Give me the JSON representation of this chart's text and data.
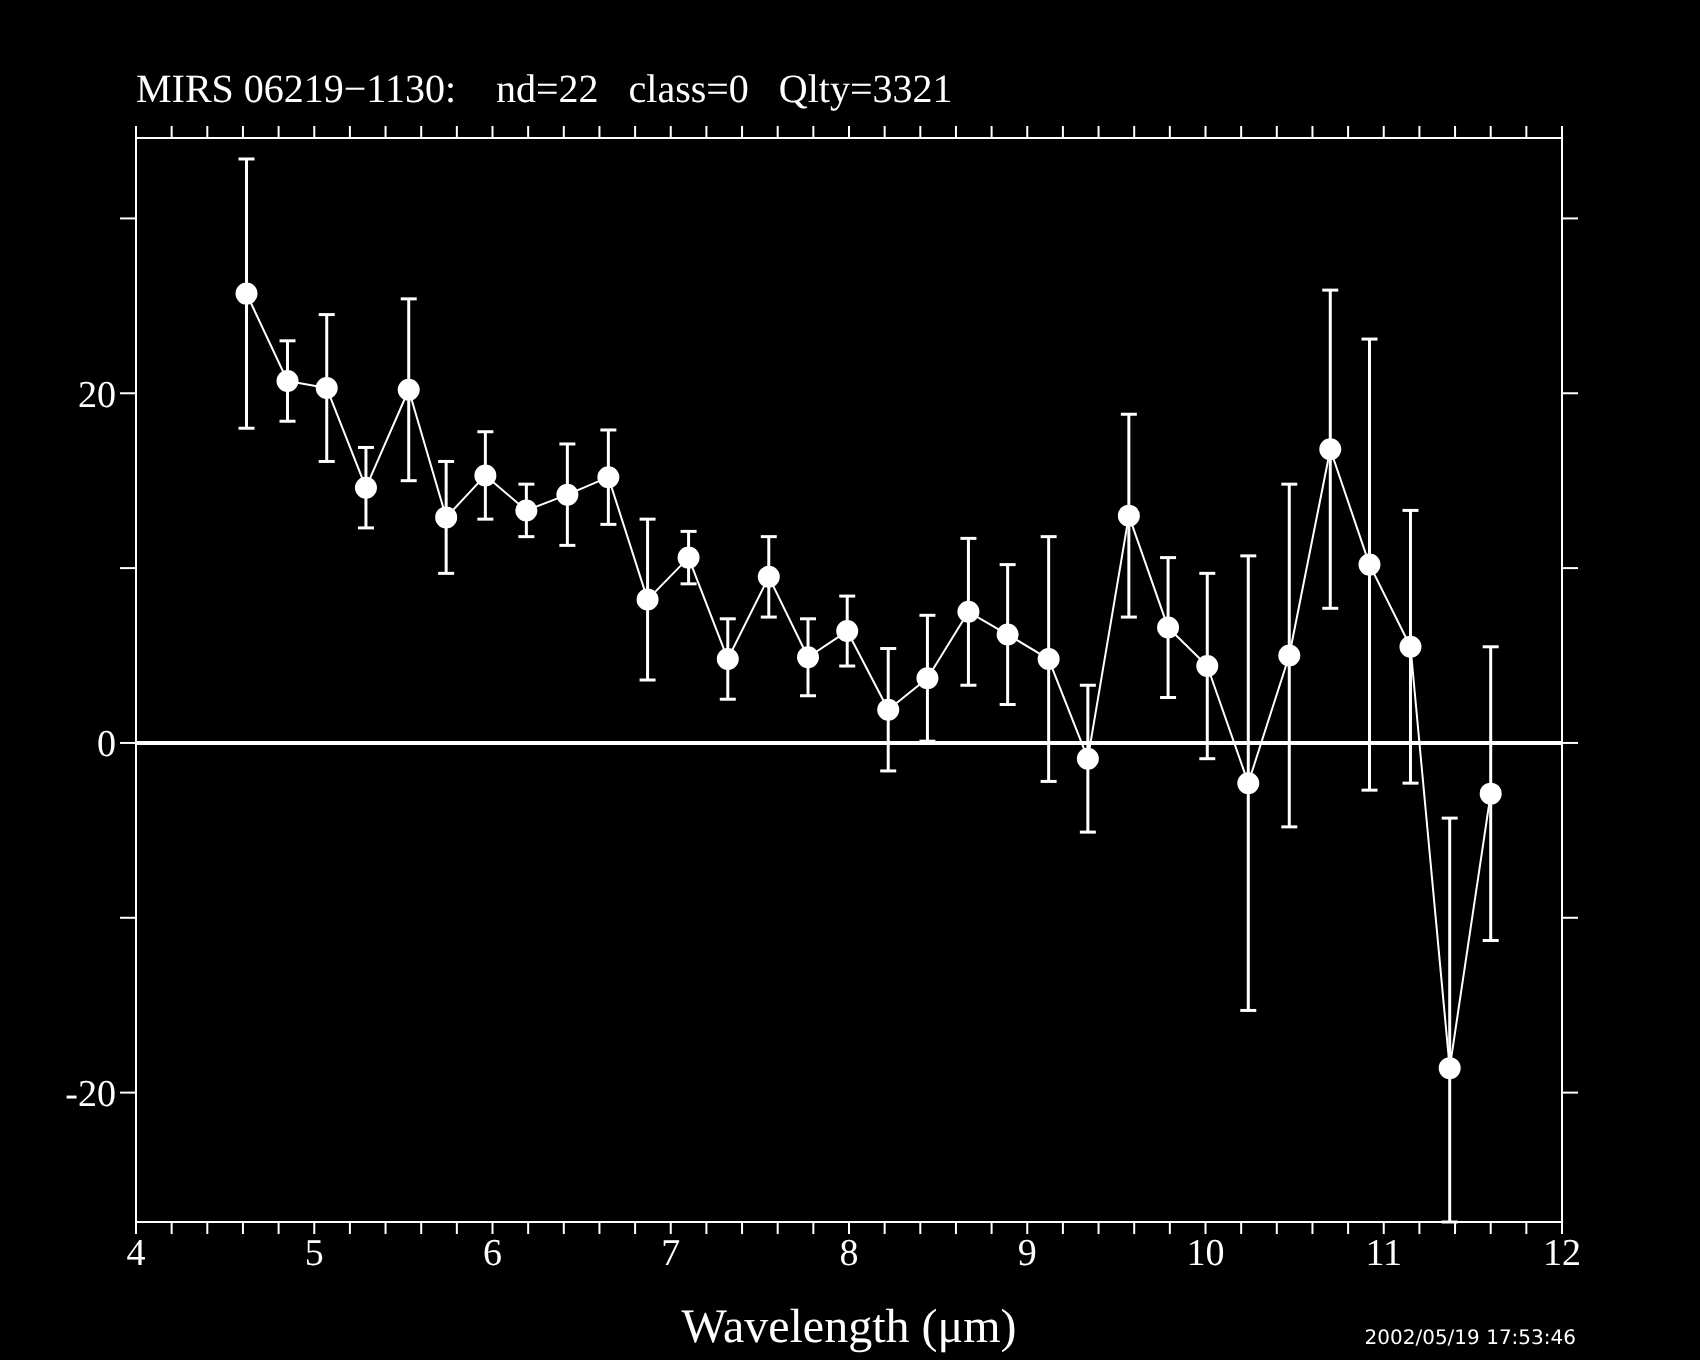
{
  "chart_data": {
    "type": "line",
    "title": "MIRS 06219−1130:    nd=22   class=0   Qlty=3321",
    "xlabel": "Wavelength (μm)",
    "x": [
      4.62,
      4.85,
      5.07,
      5.29,
      5.53,
      5.74,
      5.96,
      6.19,
      6.42,
      6.65,
      6.87,
      7.1,
      7.32,
      7.55,
      7.77,
      7.99,
      8.22,
      8.44,
      8.67,
      8.89,
      9.12,
      9.34,
      9.57,
      9.79,
      10.01,
      10.24,
      10.47,
      10.7,
      10.92,
      11.15,
      11.37,
      11.6
    ],
    "series": [
      {
        "color": "#ffffff",
        "values": [
          25.7,
          20.7,
          20.3,
          14.6,
          20.2,
          12.9,
          15.3,
          13.3,
          14.2,
          15.2,
          8.2,
          10.6,
          4.8,
          9.5,
          4.9,
          6.4,
          1.9,
          3.7,
          7.5,
          6.2,
          4.8,
          -0.9,
          13.0,
          6.6,
          4.4,
          -2.3,
          5.0,
          16.8,
          10.2,
          5.5,
          -18.6,
          -2.9
        ],
        "errors": [
          7.7,
          2.3,
          4.2,
          2.3,
          5.2,
          3.2,
          2.5,
          1.5,
          2.9,
          2.7,
          4.6,
          1.5,
          2.3,
          2.3,
          2.2,
          2.0,
          3.5,
          3.6,
          4.2,
          4.0,
          7.0,
          4.2,
          5.8,
          4.0,
          5.3,
          13.0,
          9.8,
          9.1,
          12.9,
          7.8,
          [
            -27.4,
            -4.3
          ],
          8.4
        ]
      }
    ],
    "marker": "circle",
    "line_style": "solid",
    "xlim": [
      4,
      12
    ],
    "ylim": [
      -27.4,
      34.6
    ],
    "xticks": [
      4,
      {
        "value": 4.2,
        "label": null
      },
      {
        "value": 4.4,
        "label": null
      },
      {
        "value": 4.6,
        "label": null
      },
      {
        "value": 4.8,
        "label": null
      },
      5,
      {
        "value": 5.2,
        "label": null
      },
      {
        "value": 5.4,
        "label": null
      },
      {
        "value": 5.6,
        "label": null
      },
      {
        "value": 5.8,
        "label": null
      },
      6,
      {
        "value": 6.2,
        "label": null
      },
      {
        "value": 6.4,
        "label": null
      },
      {
        "value": 6.6,
        "label": null
      },
      {
        "value": 6.8,
        "label": null
      },
      7,
      {
        "value": 7.2,
        "label": null
      },
      {
        "value": 7.4,
        "label": null
      },
      {
        "value": 7.6,
        "label": null
      },
      {
        "value": 7.8,
        "label": null
      },
      8,
      {
        "value": 8.2,
        "label": null
      },
      {
        "value": 8.4,
        "label": null
      },
      {
        "value": 8.6,
        "label": null
      },
      {
        "value": 8.8,
        "label": null
      },
      9,
      {
        "value": 9.2,
        "label": null
      },
      {
        "value": 9.4,
        "label": null
      },
      {
        "value": 9.6,
        "label": null
      },
      {
        "value": 9.8,
        "label": null
      },
      10,
      {
        "value": 10.2,
        "label": null
      },
      {
        "value": 10.4,
        "label": null
      },
      {
        "value": 10.6,
        "label": null
      },
      {
        "value": 10.8,
        "label": null
      },
      11,
      {
        "value": 11.2,
        "label": null
      },
      {
        "value": 11.4,
        "label": null
      },
      {
        "value": 11.6,
        "label": null
      },
      {
        "value": 11.8,
        "label": null
      },
      12
    ],
    "yticks": [
      -20,
      {
        "value": -10,
        "label": null
      },
      0,
      {
        "value": 10,
        "label": null
      },
      20,
      {
        "value": 30,
        "label": null
      }
    ],
    "ref_lines": [
      {
        "axis": "y",
        "value": 0,
        "color": "#ffffff",
        "line_style": "solid"
      }
    ],
    "annotations": [
      "2002/05/19 17:53:46"
    ],
    "grid": false,
    "legend": false
  }
}
